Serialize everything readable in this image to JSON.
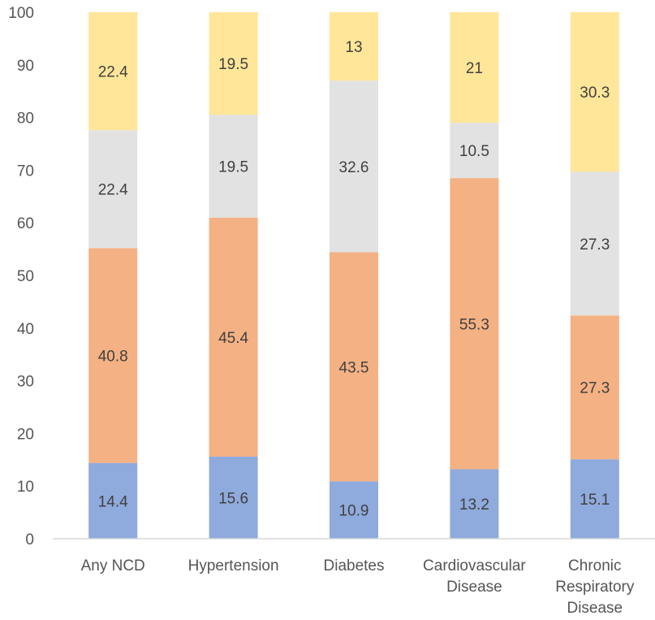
{
  "chart_data": {
    "type": "bar",
    "stacked": true,
    "title": "",
    "xlabel": "",
    "ylabel": "",
    "ylim": [
      0,
      100
    ],
    "yticks": [
      0,
      10,
      20,
      30,
      40,
      50,
      60,
      70,
      80,
      90,
      100
    ],
    "grid": false,
    "legend": "none",
    "categories": [
      [
        "Any NCD"
      ],
      [
        "Hypertension"
      ],
      [
        "Diabetes"
      ],
      [
        "Cardiovascular",
        "Disease"
      ],
      [
        "Chronic",
        "Respiratory",
        "Disease"
      ]
    ],
    "series": [
      {
        "color": "#8faadc",
        "values": [
          14.4,
          15.6,
          10.9,
          13.2,
          15.1
        ]
      },
      {
        "color": "#f4b183",
        "values": [
          40.8,
          45.4,
          43.5,
          55.3,
          27.3
        ]
      },
      {
        "color": "#e2e2e2",
        "values": [
          22.4,
          19.5,
          32.6,
          10.5,
          27.3
        ]
      },
      {
        "color": "#ffe699",
        "values": [
          22.4,
          19.5,
          13,
          21,
          30.3
        ]
      }
    ]
  }
}
